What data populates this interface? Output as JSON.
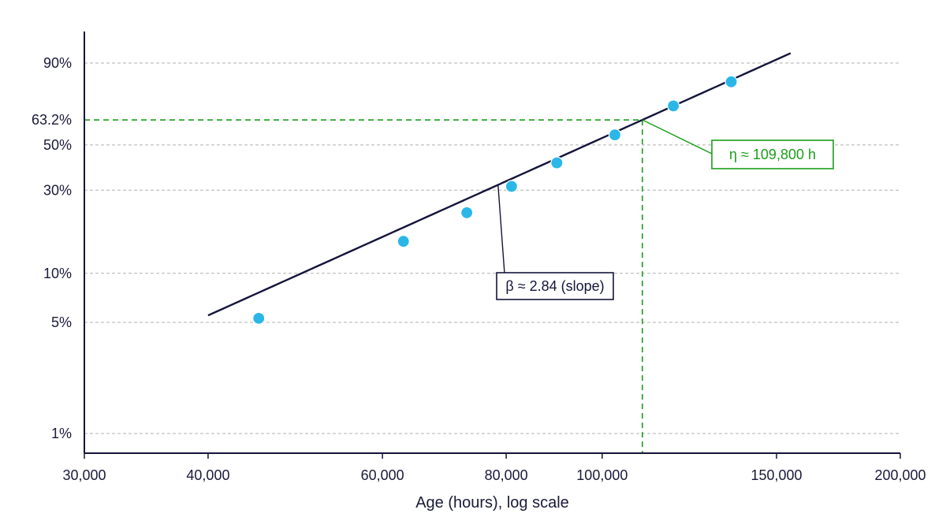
{
  "chart_data": {
    "type": "scatter",
    "title": "",
    "xlabel": "Age (hours), log scale",
    "ylabel": "",
    "x_scale": "log",
    "y_scale": "weibull",
    "xlim": [
      30000,
      200000
    ],
    "ylim": [
      0.5,
      97
    ],
    "grid": {
      "y": true,
      "x": false
    },
    "x_ticks": [
      {
        "value": 30000,
        "label": "30,000"
      },
      {
        "value": 40000,
        "label": "40,000"
      },
      {
        "value": 60000,
        "label": "60,000"
      },
      {
        "value": 80000,
        "label": "80,000"
      },
      {
        "value": 100000,
        "label": "100,000"
      },
      {
        "value": 150000,
        "label": "150,000"
      },
      {
        "value": 200000,
        "label": "200,000"
      }
    ],
    "y_ticks": [
      {
        "value": 1,
        "label": "1%"
      },
      {
        "value": 5,
        "label": "5%"
      },
      {
        "value": 10,
        "label": "10%"
      },
      {
        "value": 30,
        "label": "30%"
      },
      {
        "value": 50,
        "label": "50%"
      },
      {
        "value": 63.2,
        "label": "63.2%"
      },
      {
        "value": 90,
        "label": "90%"
      }
    ],
    "points": [
      {
        "x": 45000,
        "y": 5.3
      },
      {
        "x": 63000,
        "y": 15.5
      },
      {
        "x": 73000,
        "y": 22.6
      },
      {
        "x": 81000,
        "y": 31.4
      },
      {
        "x": 90000,
        "y": 41.3
      },
      {
        "x": 103000,
        "y": 55.2
      },
      {
        "x": 118000,
        "y": 70.7
      },
      {
        "x": 135000,
        "y": 82.6
      }
    ],
    "fit_line": {
      "beta": 2.84,
      "eta": 109800,
      "x_start": 40000,
      "x_end": 155000
    },
    "annotations": {
      "beta_label": "β ≈ 2.84 (slope)",
      "eta_label": "η ≈ 109,800 h"
    },
    "colors": {
      "line": "#14143c",
      "points": "#2ab7e8",
      "eta_reference": "#1a9e1a",
      "grid": "#b0b0b0",
      "axis": "#14143c"
    }
  }
}
